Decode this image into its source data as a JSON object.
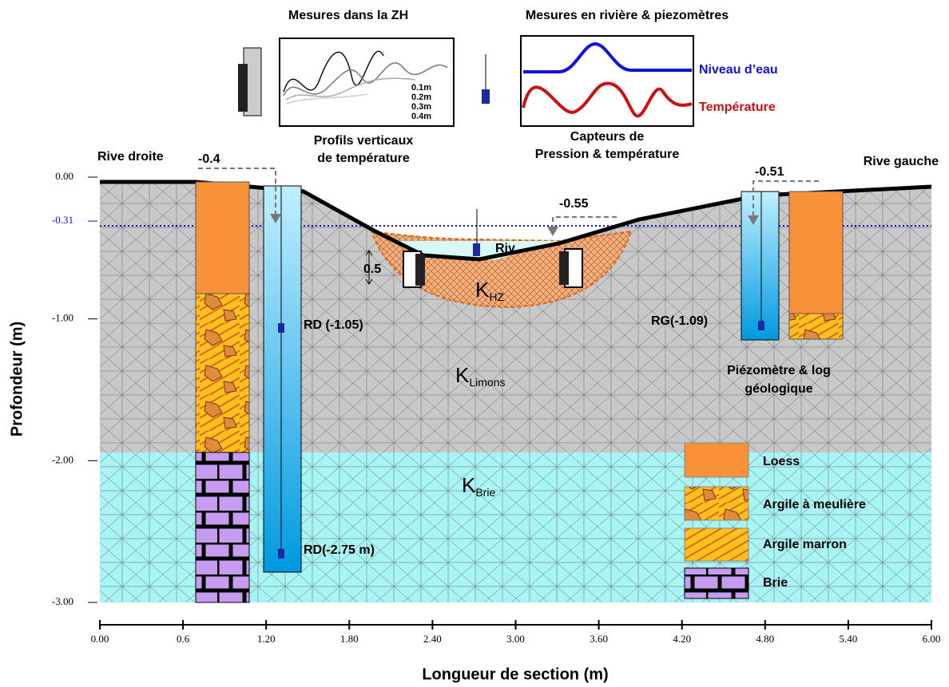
{
  "header": {
    "left_title": "Mesures dans la ZH",
    "right_title": "Mesures en rivière & piezomètres"
  },
  "inset_zh": {
    "legend": [
      "0.1m",
      "0.2m",
      "0.3m",
      "0.4m"
    ],
    "caption": [
      "Profils verticaux",
      "de température"
    ]
  },
  "inset_river": {
    "series": [
      "Niveau d’eau",
      "Température"
    ],
    "caption": [
      "Capteurs de",
      "Pression & température"
    ]
  },
  "section": {
    "banks": [
      "Rive droite",
      "Rive gauche"
    ],
    "levels": [
      "-0.4",
      "-0.51",
      "-0.55"
    ],
    "river": "Riv",
    "hz_thickness": "0.5",
    "zones": [
      {
        "symbol": "K",
        "sub": "HZ"
      },
      {
        "symbol": "K",
        "sub": "Limons"
      },
      {
        "symbol": "K",
        "sub": "Brie"
      }
    ],
    "sensors": [
      "RD (-1.05)",
      "RG(-1.09)",
      "RD(-2.75 m)"
    ],
    "log_caption": [
      "Piézomètre & log",
      "géologique"
    ]
  },
  "legend": [
    "Loess",
    "Argile à meulière",
    "Argile marron",
    "Brie"
  ],
  "axes": {
    "x": {
      "label": "Longueur de section  (m)",
      "lim": [
        0,
        6
      ],
      "ticks": [
        {
          "value": 0,
          "label": "0.00"
        },
        0.6,
        {
          "value": 1.2,
          "label": "1.20"
        },
        {
          "value": 1.8,
          "label": "1.80"
        },
        {
          "value": 2.4,
          "label": "2.40"
        },
        {
          "value": 3,
          "label": "3.00"
        },
        {
          "value": 3.6,
          "label": "3.60"
        },
        {
          "value": 4.2,
          "label": "4.20"
        },
        {
          "value": 4.8,
          "label": "4.80"
        },
        {
          "value": 5.4,
          "label": "5.40"
        },
        {
          "value": 6,
          "label": "6.00"
        }
      ]
    },
    "y": {
      "label": "Profondeur (m)",
      "lim": [
        -3,
        0
      ],
      "ticks": [
        {
          "value": 0,
          "label": "0.00"
        },
        {
          "value": -0.31,
          "label": "-0.31"
        },
        {
          "value": -1,
          "label": "-1.00"
        },
        {
          "value": -2,
          "label": "-2.00"
        },
        {
          "value": -3,
          "label": "-3.00"
        }
      ]
    }
  }
}
